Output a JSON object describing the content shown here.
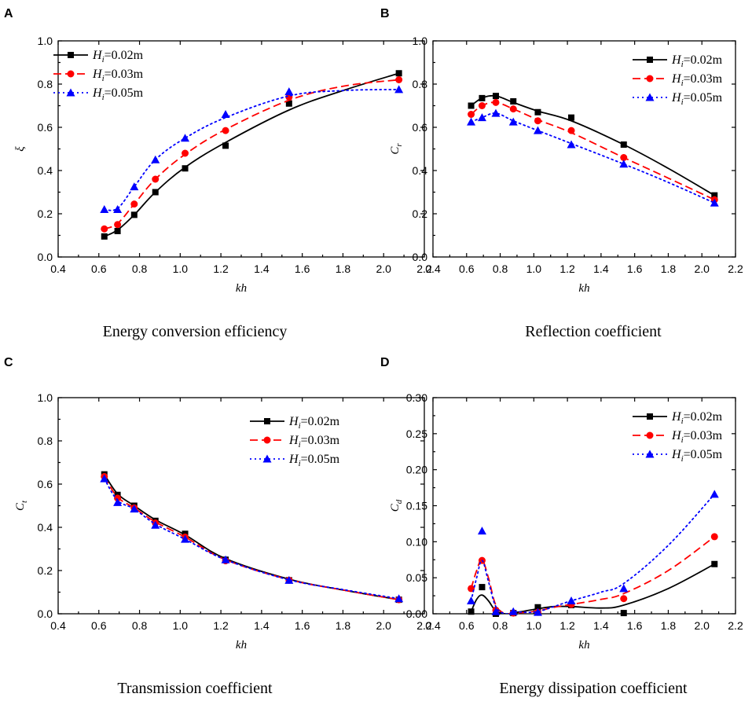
{
  "chart_data": [
    {
      "id": "A",
      "type": "line",
      "panel_label": "A",
      "title": "Energy conversion efficiency",
      "xlabel": "kh",
      "ylabel": "ξ",
      "xlim": [
        0.4,
        2.2
      ],
      "ylim": [
        0.0,
        1.0
      ],
      "xticks": [
        "0.4",
        "0.6",
        "0.8",
        "1.0",
        "1.2",
        "1.4",
        "1.6",
        "1.8",
        "2.0",
        "2.2"
      ],
      "yticks": [
        "0.0",
        "0.2",
        "0.4",
        "0.6",
        "0.8",
        "1.0"
      ],
      "legend_position": "top-left",
      "series": [
        {
          "name": "Hi=0.02m",
          "legend_main": "H",
          "legend_sub": "i",
          "legend_rest": "=0.02m",
          "color": "#000000",
          "dash": "solid",
          "marker": "square",
          "x": [
            0.627,
            0.692,
            0.774,
            0.878,
            1.024,
            1.223,
            1.535,
            2.075
          ],
          "y": [
            0.095,
            0.12,
            0.195,
            0.3,
            0.41,
            0.515,
            0.71,
            0.85
          ],
          "curve": [
            [
              0.627,
              0.095
            ],
            [
              0.692,
              0.125
            ],
            [
              0.774,
              0.195
            ],
            [
              0.878,
              0.3
            ],
            [
              1.024,
              0.415
            ],
            [
              1.223,
              0.53
            ],
            [
              1.535,
              0.68
            ],
            [
              1.8,
              0.77
            ],
            [
              2.075,
              0.85
            ]
          ]
        },
        {
          "name": "Hi=0.03m",
          "legend_main": "H",
          "legend_sub": "i",
          "legend_rest": "=0.03m",
          "color": "#ff0000",
          "dash": "dashed",
          "marker": "circle",
          "x": [
            0.627,
            0.692,
            0.774,
            0.878,
            1.024,
            1.223,
            1.535,
            2.075
          ],
          "y": [
            0.13,
            0.15,
            0.245,
            0.36,
            0.48,
            0.585,
            0.74,
            0.82
          ],
          "curve": [
            [
              0.627,
              0.13
            ],
            [
              0.692,
              0.155
            ],
            [
              0.774,
              0.245
            ],
            [
              0.878,
              0.36
            ],
            [
              1.024,
              0.475
            ],
            [
              1.223,
              0.59
            ],
            [
              1.535,
              0.725
            ],
            [
              1.8,
              0.79
            ],
            [
              2.075,
              0.82
            ]
          ]
        },
        {
          "name": "Hi=0.05m",
          "legend_main": "H",
          "legend_sub": "i",
          "legend_rest": "=0.05m",
          "color": "#0000ff",
          "dash": "dotted",
          "marker": "triangle",
          "x": [
            0.627,
            0.692,
            0.774,
            0.878,
            1.024,
            1.223,
            1.535,
            2.075
          ],
          "y": [
            0.22,
            0.22,
            0.325,
            0.45,
            0.55,
            0.66,
            0.765,
            0.775
          ],
          "curve": [
            [
              0.627,
              0.22
            ],
            [
              0.692,
              0.225
            ],
            [
              0.774,
              0.325
            ],
            [
              0.878,
              0.45
            ],
            [
              1.024,
              0.55
            ],
            [
              1.223,
              0.645
            ],
            [
              1.535,
              0.745
            ],
            [
              1.8,
              0.77
            ],
            [
              2.075,
              0.775
            ]
          ]
        }
      ]
    },
    {
      "id": "B",
      "type": "line",
      "panel_label": "B",
      "title": "Reflection coefficient",
      "xlabel": "kh",
      "ylabel": "Cr",
      "ylabel_main": "C",
      "ylabel_sub": "r",
      "xlim": [
        0.4,
        2.2
      ],
      "ylim": [
        0.0,
        1.0
      ],
      "xticks": [
        "0.4",
        "0.6",
        "0.8",
        "1.0",
        "1.2",
        "1.4",
        "1.6",
        "1.8",
        "2.0",
        "2.2"
      ],
      "yticks": [
        "0.0",
        "0.2",
        "0.4",
        "0.6",
        "0.8",
        "1.0"
      ],
      "legend_position": "top-right",
      "series": [
        {
          "name": "Hi=0.02m",
          "legend_main": "H",
          "legend_sub": "i",
          "legend_rest": "=0.02m",
          "color": "#000000",
          "dash": "solid",
          "marker": "square",
          "x": [
            0.627,
            0.692,
            0.774,
            0.878,
            1.024,
            1.223,
            1.535,
            2.075
          ],
          "y": [
            0.7,
            0.735,
            0.745,
            0.72,
            0.67,
            0.645,
            0.52,
            0.285
          ],
          "curve": [
            [
              0.627,
              0.7
            ],
            [
              0.692,
              0.735
            ],
            [
              0.774,
              0.745
            ],
            [
              0.878,
              0.715
            ],
            [
              1.024,
              0.675
            ],
            [
              1.223,
              0.63
            ],
            [
              1.535,
              0.52
            ],
            [
              1.8,
              0.41
            ],
            [
              2.075,
              0.285
            ]
          ]
        },
        {
          "name": "Hi=0.03m",
          "legend_main": "H",
          "legend_sub": "i",
          "legend_rest": "=0.03m",
          "color": "#ff0000",
          "dash": "dashed",
          "marker": "circle",
          "x": [
            0.627,
            0.692,
            0.774,
            0.878,
            1.024,
            1.223,
            1.535,
            2.075
          ],
          "y": [
            0.66,
            0.7,
            0.715,
            0.685,
            0.63,
            0.585,
            0.46,
            0.265
          ],
          "curve": [
            [
              0.627,
              0.66
            ],
            [
              0.692,
              0.7
            ],
            [
              0.774,
              0.715
            ],
            [
              0.878,
              0.685
            ],
            [
              1.024,
              0.635
            ],
            [
              1.223,
              0.575
            ],
            [
              1.535,
              0.46
            ],
            [
              1.8,
              0.365
            ],
            [
              2.075,
              0.265
            ]
          ]
        },
        {
          "name": "Hi=0.05m",
          "legend_main": "H",
          "legend_sub": "i",
          "legend_rest": "=0.05m",
          "color": "#0000ff",
          "dash": "dotted",
          "marker": "triangle",
          "x": [
            0.627,
            0.692,
            0.774,
            0.878,
            1.024,
            1.223,
            1.535,
            2.075
          ],
          "y": [
            0.625,
            0.645,
            0.665,
            0.625,
            0.585,
            0.52,
            0.43,
            0.25
          ],
          "curve": [
            [
              0.627,
              0.625
            ],
            [
              0.692,
              0.645
            ],
            [
              0.774,
              0.665
            ],
            [
              0.878,
              0.63
            ],
            [
              1.024,
              0.585
            ],
            [
              1.223,
              0.525
            ],
            [
              1.535,
              0.43
            ],
            [
              1.8,
              0.345
            ],
            [
              2.075,
              0.25
            ]
          ]
        }
      ]
    },
    {
      "id": "C",
      "type": "line",
      "panel_label": "C",
      "title": "Transmission coefficient",
      "xlabel": "kh",
      "ylabel": "Ct",
      "ylabel_main": "C",
      "ylabel_sub": "t",
      "xlim": [
        0.4,
        2.2
      ],
      "ylim": [
        0.0,
        1.0
      ],
      "xticks": [
        "0.4",
        "0.6",
        "0.8",
        "1.0",
        "1.2",
        "1.4",
        "1.6",
        "1.8",
        "2.0",
        "2.2"
      ],
      "yticks": [
        "0.0",
        "0.2",
        "0.4",
        "0.6",
        "0.8",
        "1.0"
      ],
      "legend_position": "top-right",
      "series": [
        {
          "name": "Hi=0.02m",
          "legend_main": "H",
          "legend_sub": "i",
          "legend_rest": "=0.02m",
          "color": "#000000",
          "dash": "solid",
          "marker": "square",
          "x": [
            0.627,
            0.692,
            0.774,
            0.878,
            1.024,
            1.223,
            1.535,
            2.075
          ],
          "y": [
            0.645,
            0.55,
            0.5,
            0.43,
            0.37,
            0.25,
            0.155,
            0.065
          ],
          "curve": [
            [
              0.627,
              0.645
            ],
            [
              0.692,
              0.555
            ],
            [
              0.774,
              0.5
            ],
            [
              0.878,
              0.435
            ],
            [
              1.024,
              0.365
            ],
            [
              1.223,
              0.255
            ],
            [
              1.535,
              0.16
            ],
            [
              1.8,
              0.11
            ],
            [
              2.075,
              0.065
            ]
          ]
        },
        {
          "name": "Hi=0.03m",
          "legend_main": "H",
          "legend_sub": "i",
          "legend_rest": "=0.03m",
          "color": "#ff0000",
          "dash": "dashed",
          "marker": "circle",
          "x": [
            0.627,
            0.692,
            0.774,
            0.878,
            1.024,
            1.223,
            1.535,
            2.075
          ],
          "y": [
            0.635,
            0.535,
            0.49,
            0.42,
            0.355,
            0.245,
            0.155,
            0.065
          ],
          "curve": [
            [
              0.627,
              0.635
            ],
            [
              0.692,
              0.54
            ],
            [
              0.774,
              0.49
            ],
            [
              0.878,
              0.425
            ],
            [
              1.024,
              0.355
            ],
            [
              1.223,
              0.25
            ],
            [
              1.535,
              0.158
            ],
            [
              1.8,
              0.11
            ],
            [
              2.075,
              0.065
            ]
          ]
        },
        {
          "name": "Hi=0.05m",
          "legend_main": "H",
          "legend_sub": "i",
          "legend_rest": "=0.05m",
          "color": "#0000ff",
          "dash": "dotted",
          "marker": "triangle",
          "x": [
            0.627,
            0.692,
            0.774,
            0.878,
            1.024,
            1.223,
            1.535,
            2.075
          ],
          "y": [
            0.625,
            0.515,
            0.485,
            0.41,
            0.345,
            0.25,
            0.155,
            0.07
          ],
          "curve": [
            [
              0.627,
              0.625
            ],
            [
              0.692,
              0.525
            ],
            [
              0.774,
              0.485
            ],
            [
              0.878,
              0.415
            ],
            [
              1.024,
              0.345
            ],
            [
              1.223,
              0.25
            ],
            [
              1.535,
              0.157
            ],
            [
              1.8,
              0.112
            ],
            [
              2.075,
              0.07
            ]
          ]
        }
      ]
    },
    {
      "id": "D",
      "type": "line",
      "panel_label": "D",
      "title": "Energy dissipation coefficient",
      "xlabel": "kh",
      "ylabel": "Cd",
      "ylabel_main": "C",
      "ylabel_sub": "d",
      "xlim": [
        0.4,
        2.2
      ],
      "ylim": [
        0.0,
        0.3
      ],
      "xticks": [
        "0.4",
        "0.6",
        "0.8",
        "1.0",
        "1.2",
        "1.4",
        "1.6",
        "1.8",
        "2.0",
        "2.2"
      ],
      "yticks": [
        "0.00",
        "0.05",
        "0.10",
        "0.15",
        "0.20",
        "0.25",
        "0.30"
      ],
      "legend_position": "top-right",
      "series": [
        {
          "name": "Hi=0.02m",
          "legend_main": "H",
          "legend_sub": "i",
          "legend_rest": "=0.02m",
          "color": "#000000",
          "dash": "solid",
          "marker": "square",
          "x": [
            0.627,
            0.692,
            0.774,
            0.878,
            1.024,
            1.223,
            1.535,
            2.075
          ],
          "y": [
            0.003,
            0.037,
            0.0,
            0.001,
            0.009,
            0.012,
            0.001,
            0.069
          ],
          "curve": [
            [
              0.627,
              0.003
            ],
            [
              0.66,
              0.02
            ],
            [
              0.692,
              0.026
            ],
            [
              0.73,
              0.018
            ],
            [
              0.774,
              0.004
            ],
            [
              0.83,
              0.0
            ],
            [
              0.878,
              0.001
            ],
            [
              0.95,
              0.004
            ],
            [
              1.024,
              0.007
            ],
            [
              1.12,
              0.01
            ],
            [
              1.223,
              0.01
            ],
            [
              1.4,
              0.008
            ],
            [
              1.535,
              0.012
            ],
            [
              1.8,
              0.035
            ],
            [
              2.075,
              0.069
            ]
          ]
        },
        {
          "name": "Hi=0.03m",
          "legend_main": "H",
          "legend_sub": "i",
          "legend_rest": "=0.03m",
          "color": "#ff0000",
          "dash": "dashed",
          "marker": "circle",
          "x": [
            0.627,
            0.692,
            0.774,
            0.878,
            1.024,
            1.223,
            1.535,
            2.075
          ],
          "y": [
            0.035,
            0.074,
            0.005,
            0.001,
            0.002,
            0.013,
            0.021,
            0.107
          ],
          "curve": [
            [
              0.627,
              0.035
            ],
            [
              0.66,
              0.06
            ],
            [
              0.692,
              0.075
            ],
            [
              0.73,
              0.05
            ],
            [
              0.774,
              0.012
            ],
            [
              0.83,
              0.0
            ],
            [
              0.878,
              0.001
            ],
            [
              0.95,
              0.002
            ],
            [
              1.024,
              0.004
            ],
            [
              1.12,
              0.009
            ],
            [
              1.223,
              0.013
            ],
            [
              1.4,
              0.02
            ],
            [
              1.535,
              0.028
            ],
            [
              1.8,
              0.06
            ],
            [
              2.075,
              0.107
            ]
          ]
        },
        {
          "name": "Hi=0.05m",
          "legend_main": "H",
          "legend_sub": "i",
          "legend_rest": "=0.05m",
          "color": "#0000ff",
          "dash": "dotted",
          "marker": "triangle",
          "x": [
            0.627,
            0.692,
            0.774,
            0.878,
            1.024,
            1.223,
            1.535,
            2.075
          ],
          "y": [
            0.018,
            0.115,
            0.003,
            0.003,
            0.002,
            0.018,
            0.035,
            0.166
          ],
          "curve": [
            [
              0.627,
              0.018
            ],
            [
              0.66,
              0.05
            ],
            [
              0.692,
              0.074
            ],
            [
              0.73,
              0.045
            ],
            [
              0.774,
              0.01
            ],
            [
              0.83,
              0.0
            ],
            [
              0.878,
              0.003
            ],
            [
              0.95,
              0.002
            ],
            [
              1.024,
              0.003
            ],
            [
              1.12,
              0.01
            ],
            [
              1.223,
              0.018
            ],
            [
              1.4,
              0.03
            ],
            [
              1.535,
              0.042
            ],
            [
              1.8,
              0.095
            ],
            [
              2.075,
              0.166
            ]
          ]
        }
      ]
    }
  ]
}
